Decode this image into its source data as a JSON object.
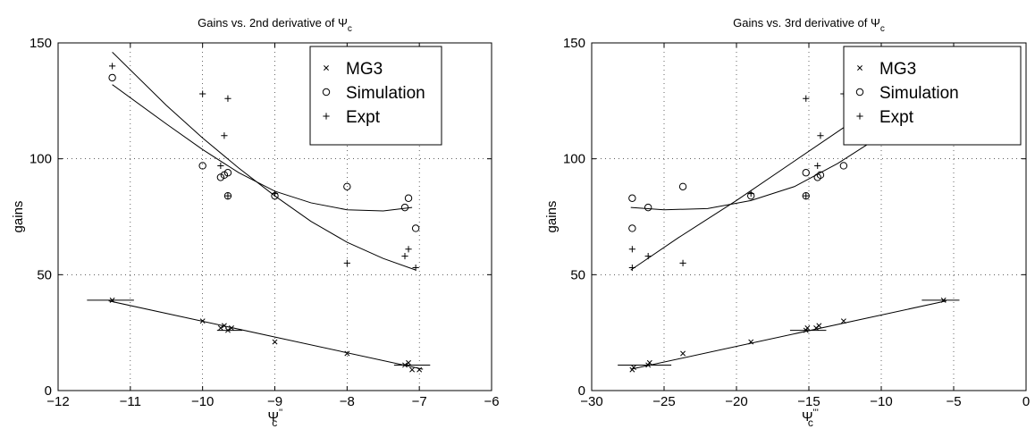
{
  "chart_data": [
    {
      "type": "scatter",
      "title": "Gains vs. 2nd derivative of Ψ",
      "title_sub": "c",
      "xlabel": "Ψ",
      "xlabel_sub": "c",
      "xlabel_prime": "''",
      "ylabel": "gains",
      "xlim": [
        -12,
        -6
      ],
      "ylim": [
        0,
        150
      ],
      "xticks": [
        -12,
        -11,
        -10,
        -9,
        -8,
        -7,
        -6
      ],
      "xtick_labels": [
        "−12",
        "−11",
        "−10",
        "−9",
        "−8",
        "−7",
        "−6"
      ],
      "yticks": [
        0,
        50,
        100,
        150
      ],
      "ytick_labels": [
        "0",
        "50",
        "100",
        "150"
      ],
      "grid": true,
      "legend_placement": "top-right",
      "series": [
        {
          "name": "MG3",
          "marker": "x",
          "points": [
            [
              -11.25,
              39
            ],
            [
              -10,
              30
            ],
            [
              -9.75,
              27
            ],
            [
              -9.7,
              28
            ],
            [
              -9.65,
              26
            ],
            [
              -9.6,
              27
            ],
            [
              -9,
              21
            ],
            [
              -8,
              16
            ],
            [
              -7.2,
              11
            ],
            [
              -7.15,
              12
            ],
            [
              -7.1,
              9
            ],
            [
              -7,
              9
            ]
          ],
          "fit": [
            [
              -11.3,
              38.7
            ],
            [
              -6.95,
              9.2
            ]
          ],
          "hbars": [
            {
              "y": 39,
              "x0": -11.6,
              "x1": -10.95
            },
            {
              "y": 26,
              "x0": -9.8,
              "x1": -9.45
            },
            {
              "y": 11,
              "x0": -7.35,
              "x1": -6.85
            }
          ]
        },
        {
          "name": "Simulation",
          "marker": "o",
          "points": [
            [
              -11.25,
              135
            ],
            [
              -10,
              97
            ],
            [
              -9.75,
              92
            ],
            [
              -9.7,
              93
            ],
            [
              -9.65,
              94
            ],
            [
              -9.65,
              84
            ],
            [
              -9,
              84
            ],
            [
              -8,
              88
            ],
            [
              -7.2,
              79
            ],
            [
              -7.15,
              83
            ],
            [
              -7.05,
              70
            ]
          ],
          "fit": [
            [
              -11.25,
              132
            ],
            [
              -10.5,
              115
            ],
            [
              -10,
              104
            ],
            [
              -9.5,
              94
            ],
            [
              -9,
              86
            ],
            [
              -8.5,
              81
            ],
            [
              -8,
              78
            ],
            [
              -7.5,
              77.5
            ],
            [
              -7.1,
              79
            ]
          ]
        },
        {
          "name": "Expt",
          "marker": "+",
          "points": [
            [
              -11.25,
              140
            ],
            [
              -10,
              128
            ],
            [
              -9.75,
              97
            ],
            [
              -9.7,
              110
            ],
            [
              -9.65,
              126
            ],
            [
              -9.65,
              84
            ],
            [
              -9,
              85
            ],
            [
              -8,
              55
            ],
            [
              -7.2,
              58
            ],
            [
              -7.15,
              61
            ],
            [
              -7.05,
              53
            ]
          ],
          "fit": [
            [
              -11.25,
              146
            ],
            [
              -10.5,
              123
            ],
            [
              -10,
              109
            ],
            [
              -9.5,
              96
            ],
            [
              -9,
              84
            ],
            [
              -8.5,
              73
            ],
            [
              -8,
              64
            ],
            [
              -7.5,
              57
            ],
            [
              -7.05,
              52
            ]
          ]
        }
      ]
    },
    {
      "type": "scatter",
      "title": "Gains vs. 3rd derivative of Ψ",
      "title_sub": "c",
      "xlabel": "Ψ",
      "xlabel_sub": "c",
      "xlabel_prime": "'''",
      "ylabel": "gains",
      "xlim": [
        -30,
        0
      ],
      "ylim": [
        0,
        150
      ],
      "xticks": [
        -30,
        -25,
        -20,
        -15,
        -10,
        -5,
        0
      ],
      "xtick_labels": [
        "−30",
        "−25",
        "−20",
        "−15",
        "−10",
        "−5",
        "0"
      ],
      "yticks": [
        0,
        50,
        100,
        150
      ],
      "ytick_labels": [
        "0",
        "50",
        "100",
        "150"
      ],
      "grid": true,
      "legend_placement": "top-right",
      "series": [
        {
          "name": "MG3",
          "marker": "x",
          "points": [
            [
              -27.2,
              9
            ],
            [
              -27.1,
              10
            ],
            [
              -26.1,
              11
            ],
            [
              -26,
              12
            ],
            [
              -23.7,
              16
            ],
            [
              -19,
              21
            ],
            [
              -15.2,
              26
            ],
            [
              -15.1,
              27
            ],
            [
              -14.5,
              27
            ],
            [
              -14.3,
              28
            ],
            [
              -12.6,
              30
            ],
            [
              -5.7,
              39
            ]
          ],
          "fit": [
            [
              -27.3,
              9.2
            ],
            [
              -5.5,
              38.7
            ]
          ],
          "hbars": [
            {
              "y": 11,
              "x0": -28.2,
              "x1": -24.5
            },
            {
              "y": 26,
              "x0": -16.3,
              "x1": -13.8
            },
            {
              "y": 39,
              "x0": -7.2,
              "x1": -4.6
            }
          ]
        },
        {
          "name": "Simulation",
          "marker": "o",
          "points": [
            [
              -27.2,
              83
            ],
            [
              -27.2,
              70
            ],
            [
              -26.1,
              79
            ],
            [
              -23.7,
              88
            ],
            [
              -19,
              84
            ],
            [
              -15.2,
              94
            ],
            [
              -15.2,
              84
            ],
            [
              -14.4,
              92
            ],
            [
              -14.2,
              93
            ],
            [
              -12.6,
              97
            ],
            [
              -5.7,
              135
            ]
          ],
          "fit": [
            [
              -27.3,
              79
            ],
            [
              -25,
              78
            ],
            [
              -22,
              78.5
            ],
            [
              -19,
              82
            ],
            [
              -16,
              88
            ],
            [
              -13,
              98
            ],
            [
              -10,
              110
            ],
            [
              -7.5,
              122
            ],
            [
              -5.7,
              132
            ]
          ]
        },
        {
          "name": "Expt",
          "marker": "+",
          "points": [
            [
              -27.2,
              61
            ],
            [
              -27.2,
              53
            ],
            [
              -26.1,
              58
            ],
            [
              -23.7,
              55
            ],
            [
              -19,
              85
            ],
            [
              -15.2,
              126
            ],
            [
              -15.2,
              84
            ],
            [
              -14.4,
              97
            ],
            [
              -14.2,
              110
            ],
            [
              -12.6,
              128
            ],
            [
              -5.7,
              140
            ]
          ],
          "fit": [
            [
              -27.3,
              52
            ],
            [
              -24,
              66
            ],
            [
              -20,
              82
            ],
            [
              -16,
              99
            ],
            [
              -12,
              116
            ],
            [
              -9,
              128
            ],
            [
              -5.7,
              143
            ]
          ]
        }
      ]
    }
  ]
}
